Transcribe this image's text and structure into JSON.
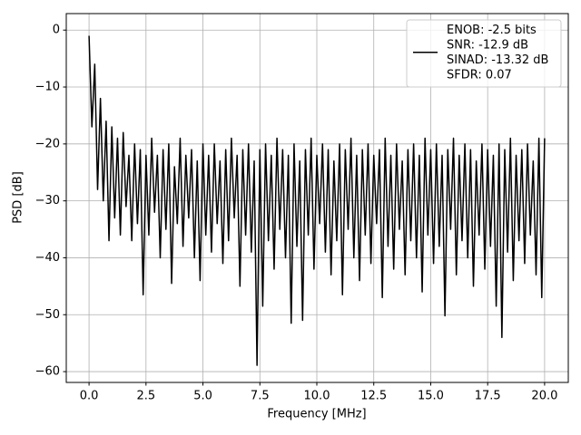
{
  "chart_data": {
    "type": "line",
    "x_label": "Frequency [MHz]",
    "y_label": "PSD [dB]",
    "grid": true,
    "legend": "upper right",
    "xlim": [
      -1.0,
      21.04
    ],
    "ylim": [
      -61.9,
      2.9
    ],
    "xticks": [
      {
        "value": 0,
        "label": "0.0"
      },
      2.5,
      {
        "value": 5,
        "label": "5.0"
      },
      7.5,
      {
        "value": 10,
        "label": "10.0"
      },
      12.5,
      {
        "value": 15,
        "label": "15.0"
      },
      17.5,
      {
        "value": 20,
        "label": "20.0"
      }
    ],
    "yticks": [
      {
        "value": 0,
        "label": "0"
      },
      {
        "value": -10,
        "label": "−10"
      },
      {
        "value": -20,
        "label": "−20"
      },
      {
        "value": -30,
        "label": "−30"
      },
      {
        "value": -40,
        "label": "−40"
      },
      {
        "value": -50,
        "label": "−50"
      },
      {
        "value": -60,
        "label": "−60"
      }
    ],
    "x": [
      0,
      0.125,
      0.25,
      0.375,
      0.5,
      0.625,
      0.75,
      0.875,
      1,
      1.125,
      1.25,
      1.375,
      1.5,
      1.625,
      1.75,
      1.875,
      2,
      2.125,
      2.25,
      2.375,
      2.5,
      2.625,
      2.75,
      2.875,
      3,
      3.125,
      3.25,
      3.375,
      3.5,
      3.625,
      3.75,
      3.875,
      4,
      4.125,
      4.25,
      4.375,
      4.5,
      4.625,
      4.75,
      4.875,
      5,
      5.125,
      5.25,
      5.375,
      5.5,
      5.625,
      5.75,
      5.875,
      6,
      6.125,
      6.25,
      6.375,
      6.5,
      6.625,
      6.75,
      6.875,
      7,
      7.125,
      7.25,
      7.375,
      7.5,
      7.625,
      7.75,
      7.875,
      8,
      8.125,
      8.25,
      8.375,
      8.5,
      8.625,
      8.75,
      8.875,
      9,
      9.125,
      9.25,
      9.375,
      9.5,
      9.625,
      9.75,
      9.875,
      10,
      10.125,
      10.25,
      10.375,
      10.5,
      10.625,
      10.75,
      10.875,
      11,
      11.125,
      11.25,
      11.375,
      11.5,
      11.625,
      11.75,
      11.875,
      12,
      12.125,
      12.25,
      12.375,
      12.5,
      12.625,
      12.75,
      12.875,
      13,
      13.125,
      13.25,
      13.375,
      13.5,
      13.625,
      13.75,
      13.875,
      14,
      14.125,
      14.25,
      14.375,
      14.5,
      14.625,
      14.75,
      14.875,
      15,
      15.125,
      15.25,
      15.375,
      15.5,
      15.625,
      15.75,
      15.875,
      16,
      16.125,
      16.25,
      16.375,
      16.5,
      16.625,
      16.75,
      16.875,
      17,
      17.125,
      17.25,
      17.375,
      17.5,
      17.625,
      17.75,
      17.875,
      18,
      18.125,
      18.25,
      18.375,
      18.5,
      18.625,
      18.75,
      18.875,
      19,
      19.125,
      19.25,
      19.375,
      19.5,
      19.625,
      19.75,
      19.875,
      20
    ],
    "series": [
      {
        "name": "ENOB: -2.5 bits\nSNR: -12.9 dB\nSINAD: -13.32 dB\nSFDR: 0.07",
        "color": "#000000",
        "values": [
          -1,
          -17,
          -6,
          -28,
          -12,
          -30,
          -16,
          -37,
          -17,
          -33,
          -19,
          -36,
          -18,
          -31,
          -22,
          -37,
          -20,
          -34,
          -21,
          -46.5,
          -22,
          -36,
          -19,
          -32,
          -22,
          -40,
          -21,
          -35,
          -20,
          -44.5,
          -24,
          -34,
          -19,
          -38,
          -22,
          -33,
          -21,
          -40,
          -23,
          -44,
          -20,
          -36,
          -22,
          -39,
          -20,
          -34,
          -23,
          -41,
          -21,
          -37,
          -19,
          -33,
          -22,
          -45,
          -21,
          -36,
          -20,
          -39,
          -23,
          -58.9,
          -21,
          -48.5,
          -20,
          -37,
          -22,
          -42,
          -19,
          -35,
          -21,
          -40,
          -22,
          -51.5,
          -20,
          -38,
          -23,
          -51,
          -21,
          -36,
          -19,
          -42,
          -22,
          -34,
          -20,
          -39,
          -21,
          -43,
          -23,
          -37,
          -20,
          -46.5,
          -21,
          -35,
          -19,
          -40,
          -22,
          -44,
          -21,
          -36,
          -20,
          -41,
          -22,
          -34,
          -21,
          -47,
          -19,
          -38,
          -22,
          -42,
          -20,
          -35,
          -23,
          -43,
          -21,
          -37,
          -20,
          -40,
          -22,
          -46,
          -19,
          -36,
          -21,
          -41,
          -20,
          -38,
          -22,
          -50.2,
          -21,
          -35,
          -19,
          -43,
          -22,
          -37,
          -20,
          -40,
          -21,
          -45,
          -23,
          -36,
          -20,
          -42,
          -21,
          -38,
          -22,
          -48.5,
          -20,
          -54,
          -21,
          -39,
          -19,
          -44,
          -22,
          -37,
          -21,
          -41,
          -20,
          -36,
          -23,
          -43,
          -19,
          -47,
          -19
        ]
      }
    ]
  }
}
